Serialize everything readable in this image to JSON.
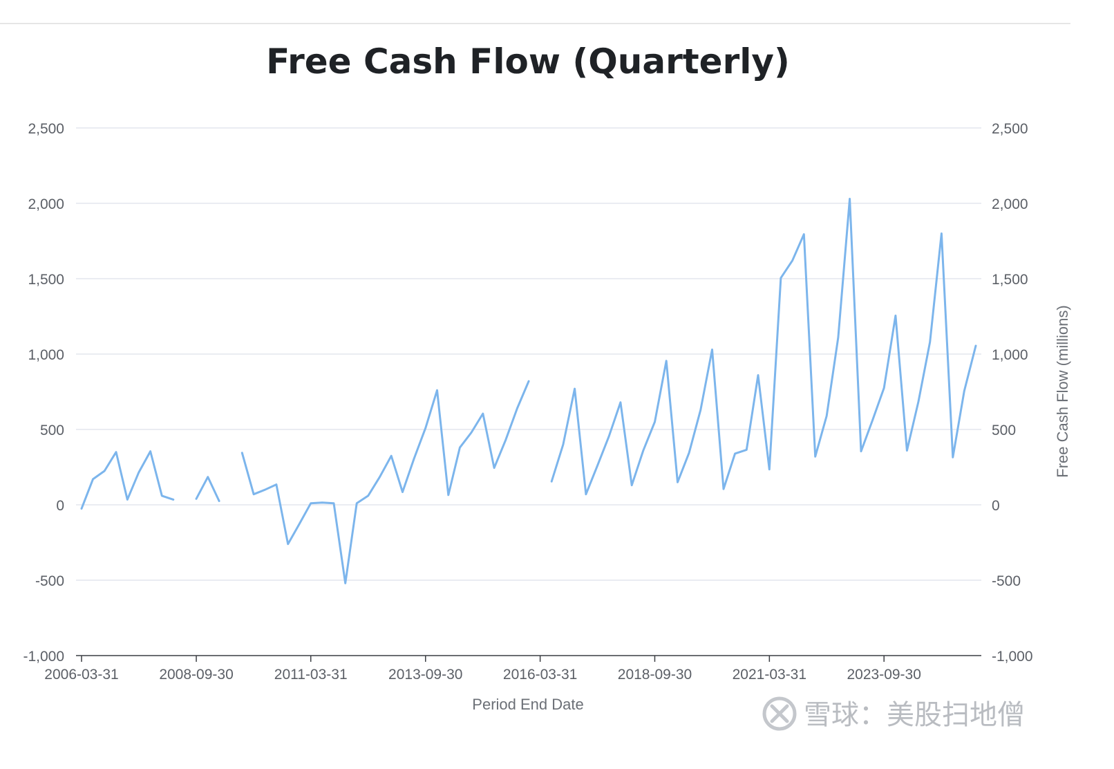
{
  "chart_data": {
    "type": "line",
    "title": "Free Cash Flow (Quarterly)",
    "xlabel": "Period End Date",
    "ylabel_right": "Free Cash Flow (millions)",
    "ylim": [
      -1000,
      2500
    ],
    "yticks": [
      -1000,
      -500,
      0,
      500,
      1000,
      1500,
      2000,
      2500
    ],
    "ytick_labels": [
      "-1,000",
      "-500",
      "0",
      "500",
      "1,000",
      "1,500",
      "2,000",
      "2,500"
    ],
    "xticks": [
      "2006-03-31",
      "2008-09-30",
      "2011-03-31",
      "2013-09-30",
      "2016-03-31",
      "2018-09-30",
      "2021-03-31",
      "2023-09-30"
    ],
    "grid": true,
    "line_color": "#7cb5ec",
    "series": [
      {
        "x": [
          "2006-03-31",
          "2006-06-30",
          "2006-09-30",
          "2006-12-31",
          "2007-03-31",
          "2007-06-30",
          "2007-09-30",
          "2007-12-31",
          "2008-03-31",
          "2008-06-30",
          "2008-09-30",
          "2008-12-31",
          "2009-03-31",
          "2009-06-30",
          "2009-09-30",
          "2009-12-31",
          "2010-03-31",
          "2010-06-30",
          "2010-09-30",
          "2010-12-31",
          "2011-03-31",
          "2011-06-30",
          "2011-09-30",
          "2011-12-31",
          "2012-03-31",
          "2012-06-30",
          "2012-09-30",
          "2012-12-31",
          "2013-03-31",
          "2013-06-30",
          "2013-09-30",
          "2013-12-31",
          "2014-03-31",
          "2014-06-30",
          "2014-09-30",
          "2014-12-31",
          "2015-03-31",
          "2015-06-30",
          "2015-09-30",
          "2015-12-31",
          "2016-03-31",
          "2016-06-30",
          "2016-09-30",
          "2016-12-31",
          "2017-03-31",
          "2017-06-30",
          "2017-09-30",
          "2017-12-31",
          "2018-03-31",
          "2018-06-30",
          "2018-09-30",
          "2018-12-31",
          "2019-03-31",
          "2019-06-30",
          "2019-09-30",
          "2019-12-31",
          "2020-03-31",
          "2020-06-30",
          "2020-09-30",
          "2020-12-31",
          "2021-03-31",
          "2021-06-30",
          "2021-09-30",
          "2021-12-31",
          "2022-03-31",
          "2022-06-30",
          "2022-09-30",
          "2022-12-31",
          "2023-03-31",
          "2023-06-30",
          "2023-09-30",
          "2023-12-31",
          "2024-03-31",
          "2024-06-30",
          "2024-09-30",
          "2024-12-31",
          "2025-03-31",
          "2025-06-30",
          "2025-09-30"
        ],
        "values": [
          -25,
          170,
          225,
          350,
          35,
          215,
          355,
          60,
          35,
          null,
          40,
          185,
          25,
          null,
          345,
          70,
          100,
          135,
          -260,
          -125,
          10,
          15,
          10,
          -520,
          10,
          60,
          185,
          325,
          85,
          305,
          510,
          760,
          65,
          380,
          480,
          605,
          245,
          430,
          640,
          820,
          null,
          155,
          400,
          770,
          70,
          260,
          455,
          680,
          130,
          360,
          550,
          955,
          150,
          345,
          630,
          1030,
          105,
          340,
          365,
          860,
          235,
          1505,
          1620,
          1795,
          320,
          590,
          1110,
          2030,
          355,
          560,
          775,
          1255,
          360,
          685,
          1080,
          1800,
          315,
          755,
          1055
        ]
      }
    ]
  },
  "watermark": "雪球：美股扫地僧"
}
